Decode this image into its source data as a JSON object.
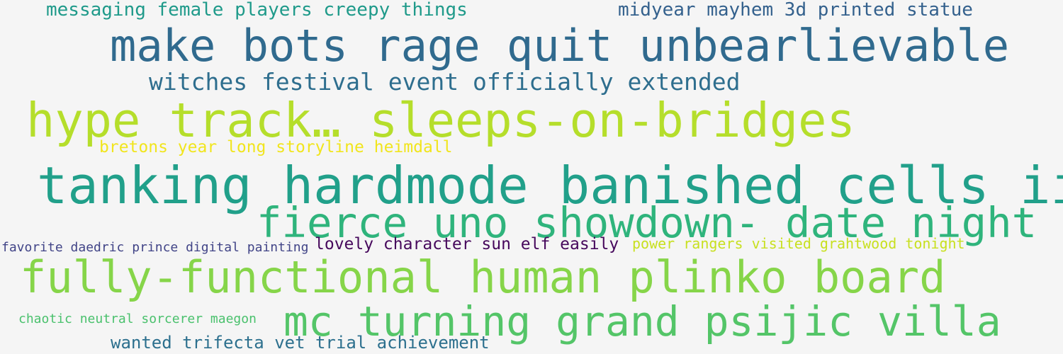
{
  "word_cloud": {
    "background": "#f5f5f5",
    "words": [
      {
        "text": "messaging female players creepy things",
        "color": "#1f9a8a"
      },
      {
        "text": "midyear mayhem 3d printed statue",
        "color": "#34618d"
      },
      {
        "text": "make bots rage quit unbearlievable",
        "color": "#306a8e"
      },
      {
        "text": "witches festival event officially extended",
        "color": "#2e6e8e"
      },
      {
        "text": "hype track… sleeps-on-bridges",
        "color": "#b5de2b"
      },
      {
        "text": "bretons year long storyline heimdall",
        "color": "#f1e51d"
      },
      {
        "text": "tanking hardmode banished cells ii",
        "color": "#21a08a"
      },
      {
        "text": "fierce uno showdown- date night",
        "color": "#2fb47c"
      },
      {
        "text": "favorite daedric prince digital painting",
        "color": "#414487"
      },
      {
        "text": "lovely character sun elf easily",
        "color": "#46085c"
      },
      {
        "text": "power rangers visited grahtwood tonight",
        "color": "#c8e020"
      },
      {
        "text": "fully-functional human plinko board",
        "color": "#86d549"
      },
      {
        "text": "chaotic neutral sorcerer maegon",
        "color": "#4ac16d"
      },
      {
        "text": "mc turning grand psijic villa",
        "color": "#54c568"
      },
      {
        "text": "wanted trifecta vet trial achievement",
        "color": "#2d708e"
      }
    ]
  }
}
